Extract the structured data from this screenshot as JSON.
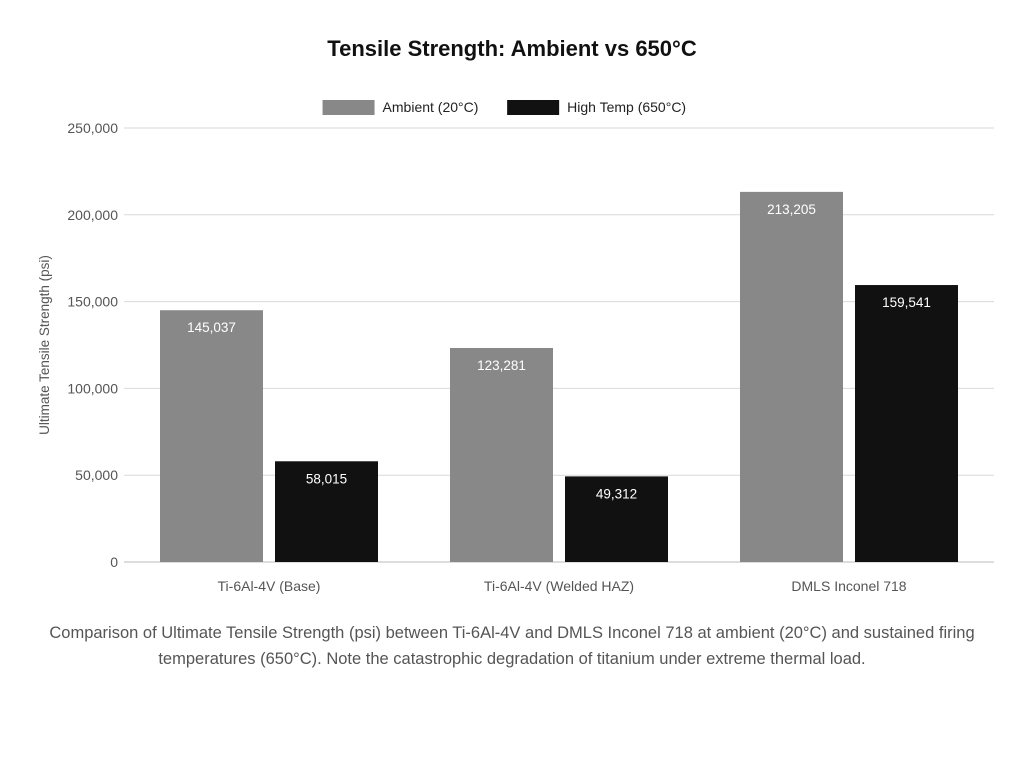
{
  "chart_data": {
    "type": "bar",
    "title": "Tensile Strength: Ambient vs 650°C",
    "ylabel": "Ultimate Tensile Strength (psi)",
    "xlabel": "",
    "ylim": [
      0,
      250000
    ],
    "yticks": [
      0,
      50000,
      100000,
      150000,
      200000,
      250000
    ],
    "grid": true,
    "legend_position": "top",
    "categories": [
      "Ti-6Al-4V (Base)",
      "Ti-6Al-4V (Welded HAZ)",
      "DMLS Inconel 718"
    ],
    "series": [
      {
        "name": "Ambient (20°C)",
        "color": "#888888",
        "values": [
          145037,
          123281,
          213205
        ]
      },
      {
        "name": "High Temp (650°C)",
        "color": "#111111",
        "values": [
          58015,
          49312,
          159541
        ]
      }
    ]
  },
  "caption": "Comparison of Ultimate Tensile Strength (psi) between Ti-6Al-4V and DMLS Inconel 718 at ambient (20°C) and sustained firing temperatures (650°C). Note the catastrophic degradation of titanium under extreme thermal load."
}
